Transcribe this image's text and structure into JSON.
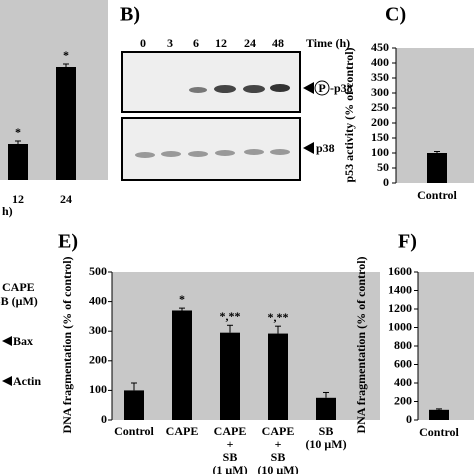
{
  "chart_data": [
    {
      "type": "bar",
      "panel": null,
      "categories": [
        "12",
        "24"
      ],
      "values": [
        36,
        113
      ],
      "errors": [
        3,
        3
      ],
      "annotations": [
        "*",
        "*"
      ],
      "ylim": [
        0,
        180
      ],
      "x_label": "h)"
    },
    {
      "type": "bar",
      "panel": "C)",
      "y_label": "p53 activity (% of control)",
      "categories": [
        "Control"
      ],
      "values": [
        100
      ],
      "errors": [
        5
      ],
      "ylim": [
        0,
        450
      ],
      "yticks": [
        0,
        50,
        100,
        150,
        200,
        250,
        300,
        350,
        400,
        450
      ]
    },
    {
      "type": "bar",
      "panel": "E)",
      "y_label": "DNA fragmentation (% of control)",
      "categories": [
        [
          "Control"
        ],
        [
          "CAPE"
        ],
        [
          "CAPE",
          "+",
          "SB",
          "(1 μM)"
        ],
        [
          "CAPE",
          "+",
          "SB",
          "(10 μM)"
        ],
        [
          "SB",
          "(10 μM)"
        ]
      ],
      "values": [
        100,
        370,
        295,
        292,
        75
      ],
      "errors": [
        25,
        8,
        25,
        25,
        18
      ],
      "annotations": [
        null,
        "*",
        "*,**",
        "*,**",
        null
      ],
      "ylim": [
        0,
        500
      ],
      "yticks": [
        0,
        100,
        200,
        300,
        400,
        500
      ]
    },
    {
      "type": "bar",
      "panel": "F)",
      "y_label": "DNA fragmentation (% of control)",
      "categories": [
        "Control"
      ],
      "values": [
        110
      ],
      "errors": [
        10
      ],
      "ylim": [
        0,
        1600
      ],
      "yticks": [
        0,
        200,
        400,
        600,
        800,
        1000,
        1200,
        1400,
        1600
      ]
    }
  ],
  "blot": {
    "panel": "B)",
    "times": [
      "0",
      "3",
      "6",
      "12",
      "24",
      "48"
    ],
    "time_unit": "Time (h)",
    "phospho_label": "p38",
    "phospho_mark": "P",
    "total_label": "p38"
  },
  "left_labels": {
    "cape": "CAPE",
    "sb": "SB (μM)",
    "bax": "Bax",
    "actin": "Actin"
  }
}
